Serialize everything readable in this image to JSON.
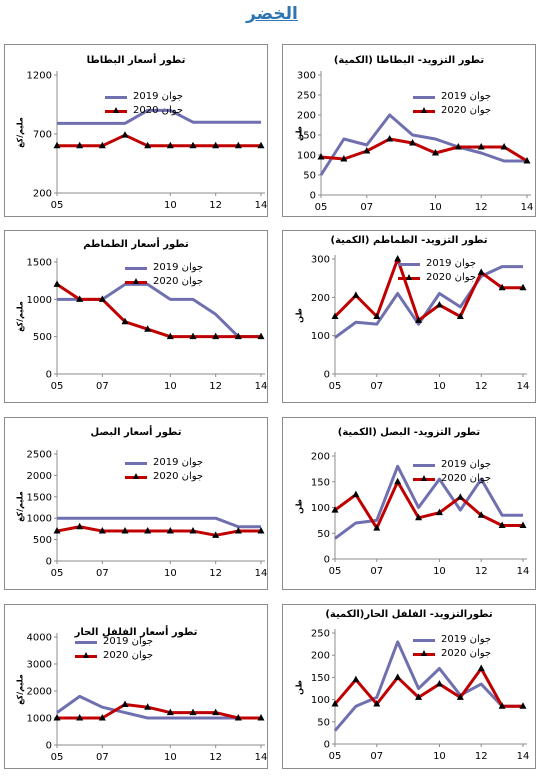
{
  "page": {
    "title": "الخضر"
  },
  "legend": {
    "y2019": "جوان 2019",
    "y2020": "جوان 2020"
  },
  "colors": {
    "y2019": "#7070b0",
    "y2020": "#c00000",
    "marker": "#000000",
    "axis": "#8c8c8c"
  },
  "chart_data": [
    {
      "id": "potato-supply",
      "type": "line",
      "title": "تطور التزويد- البطاطا (الكمية)",
      "ylabel": "طن",
      "x": [
        5,
        6,
        7,
        8,
        9,
        10,
        11,
        12,
        13,
        14
      ],
      "xticks": [
        "05",
        "07",
        "10",
        "12",
        "14"
      ],
      "ylim": [
        0,
        300
      ],
      "yticks": [
        0,
        50,
        100,
        150,
        200,
        250,
        300
      ],
      "series": [
        {
          "name": "جوان 2019",
          "values": [
            50,
            140,
            125,
            200,
            150,
            140,
            120,
            105,
            85,
            85
          ]
        },
        {
          "name": "جوان 2020",
          "values": [
            95,
            90,
            110,
            140,
            130,
            105,
            120,
            120,
            120,
            85
          ]
        }
      ]
    },
    {
      "id": "potato-price",
      "type": "line",
      "title": "تطور أسعار البطاطا",
      "ylabel": "مليم/كغ",
      "x": [
        5,
        6,
        7,
        8,
        9,
        10,
        11,
        12,
        13,
        14
      ],
      "xticks": [
        "05",
        "10",
        "12",
        "14"
      ],
      "ylim": [
        200,
        1200
      ],
      "yticks": [
        200,
        700,
        1200
      ],
      "series": [
        {
          "name": "جوان 2019",
          "values": [
            790,
            790,
            790,
            790,
            900,
            900,
            800,
            800,
            800,
            800
          ]
        },
        {
          "name": "جوان 2020",
          "values": [
            600,
            600,
            600,
            690,
            600,
            600,
            600,
            600,
            600,
            600
          ]
        }
      ]
    },
    {
      "id": "tomato-supply",
      "type": "line",
      "title": "تطور التزويد- الطماطم (الكمية)",
      "ylabel": "طن",
      "x": [
        5,
        6,
        7,
        8,
        9,
        10,
        11,
        12,
        13,
        14
      ],
      "xticks": [
        "05",
        "07",
        "10",
        "12",
        "14"
      ],
      "ylim": [
        0,
        300
      ],
      "yticks": [
        0,
        100,
        200,
        300
      ],
      "series": [
        {
          "name": "جوان 2019",
          "values": [
            95,
            135,
            130,
            210,
            130,
            210,
            175,
            255,
            280,
            280
          ]
        },
        {
          "name": "جوان 2020",
          "values": [
            150,
            205,
            150,
            300,
            140,
            180,
            150,
            265,
            225,
            225
          ]
        }
      ]
    },
    {
      "id": "tomato-price",
      "type": "line",
      "title": "تطور أسعار الطماطم",
      "ylabel": "مليم/كغ",
      "x": [
        5,
        6,
        7,
        8,
        9,
        10,
        11,
        12,
        13,
        14
      ],
      "xticks": [
        "05",
        "07",
        "10",
        "12",
        "14"
      ],
      "ylim": [
        0,
        1500
      ],
      "yticks": [
        0,
        500,
        1000,
        1500
      ],
      "series": [
        {
          "name": "جوان 2019",
          "values": [
            1000,
            1000,
            1000,
            1200,
            1200,
            1000,
            1000,
            800,
            500,
            500
          ]
        },
        {
          "name": "جوان 2020",
          "values": [
            1200,
            1000,
            1000,
            700,
            600,
            500,
            500,
            500,
            500,
            500
          ]
        }
      ]
    },
    {
      "id": "onion-supply",
      "type": "line",
      "title": "تطور التزويد- البصل (الكمية)",
      "ylabel": "طن",
      "x": [
        5,
        6,
        7,
        8,
        9,
        10,
        11,
        12,
        13,
        14
      ],
      "xticks": [
        "05",
        "07",
        "10",
        "12",
        "14"
      ],
      "ylim": [
        0,
        200
      ],
      "yticks": [
        0,
        50,
        100,
        150,
        200
      ],
      "series": [
        {
          "name": "جوان 2019",
          "values": [
            40,
            70,
            75,
            180,
            100,
            155,
            95,
            155,
            85,
            85
          ]
        },
        {
          "name": "جوان 2020",
          "values": [
            95,
            125,
            60,
            150,
            80,
            90,
            120,
            85,
            65,
            65
          ]
        }
      ]
    },
    {
      "id": "onion-price",
      "type": "line",
      "title": "تطور أسعار البصل",
      "ylabel": "مليم/كغ",
      "x": [
        5,
        6,
        7,
        8,
        9,
        10,
        11,
        12,
        13,
        14
      ],
      "xticks": [
        "05",
        "07",
        "10",
        "12",
        "14"
      ],
      "ylim": [
        0,
        2500
      ],
      "yticks": [
        0,
        500,
        1000,
        1500,
        2000,
        2500
      ],
      "series": [
        {
          "name": "جوان 2019",
          "values": [
            1000,
            1000,
            1000,
            1000,
            1000,
            1000,
            1000,
            1000,
            800,
            800
          ]
        },
        {
          "name": "جوان 2020",
          "values": [
            700,
            800,
            700,
            700,
            700,
            700,
            700,
            600,
            700,
            700
          ]
        }
      ]
    },
    {
      "id": "pepper-supply",
      "type": "line",
      "title": "تطورالتزويد- الفلفل الحار(الكمية)",
      "ylabel": "طن",
      "x": [
        5,
        6,
        7,
        8,
        9,
        10,
        11,
        12,
        13,
        14
      ],
      "xticks": [
        "05",
        "07",
        "10",
        "12",
        "14"
      ],
      "ylim": [
        0,
        250
      ],
      "yticks": [
        0,
        50,
        100,
        150,
        200,
        250
      ],
      "series": [
        {
          "name": "جوان 2019",
          "values": [
            30,
            85,
            105,
            230,
            125,
            170,
            110,
            135,
            85,
            85
          ]
        },
        {
          "name": "جوان 2020",
          "values": [
            90,
            145,
            90,
            150,
            105,
            135,
            105,
            170,
            85,
            85
          ]
        }
      ]
    },
    {
      "id": "pepper-price",
      "type": "line",
      "title": "تطور أسعار الفلفل الحار",
      "ylabel": "مليم/كغ",
      "x": [
        5,
        6,
        7,
        8,
        9,
        10,
        11,
        12,
        13,
        14
      ],
      "xticks": [
        "05",
        "07",
        "10",
        "12",
        "14"
      ],
      "ylim": [
        0,
        4000
      ],
      "yticks": [
        0,
        1000,
        2000,
        3000,
        4000
      ],
      "series": [
        {
          "name": "جوان 2019",
          "values": [
            1200,
            1800,
            1400,
            1200,
            1000,
            1000,
            1000,
            1000,
            1000,
            1000
          ]
        },
        {
          "name": "جوان 2020",
          "values": [
            1000,
            1000,
            1000,
            1500,
            1400,
            1200,
            1200,
            1200,
            1000,
            1000
          ]
        }
      ]
    }
  ]
}
